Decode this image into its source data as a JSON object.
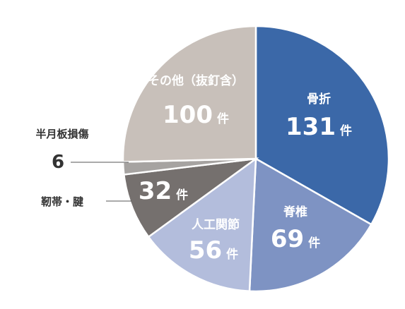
{
  "chart_data": {
    "type": "pie",
    "unit": "件",
    "slices": [
      {
        "label": "骨折",
        "value": 131,
        "color": "#3b68a8"
      },
      {
        "label": "脊椎",
        "value": 69,
        "color": "#7e93c3"
      },
      {
        "label": "人工関節",
        "value": 56,
        "color": "#b3bddc"
      },
      {
        "label": "靭帯・腱",
        "value": 32,
        "color": "#75706e"
      },
      {
        "label": "半月板損傷",
        "value": 6,
        "color": "#a6a3a1"
      },
      {
        "label": "その他（抜釘含）",
        "value": 100,
        "color": "#c8c0ba"
      }
    ]
  }
}
